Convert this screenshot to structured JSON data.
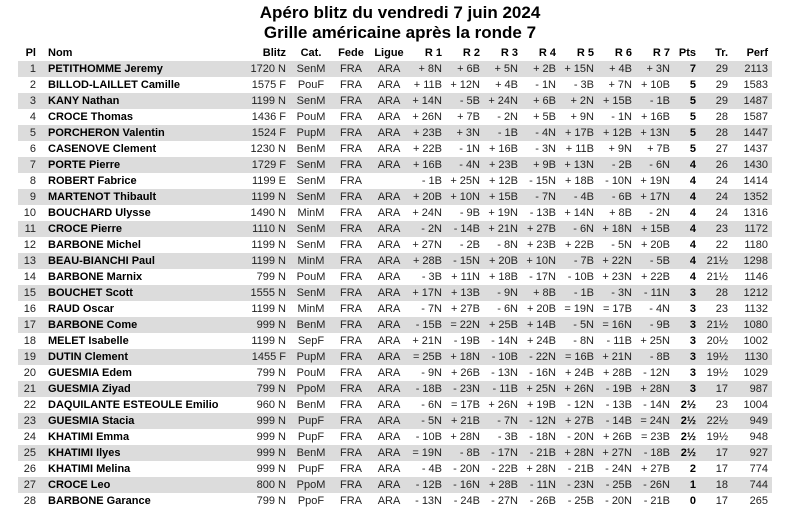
{
  "title": "Apéro blitz du vendredi 7 juin 2024",
  "subtitle": "Grille américaine après la ronde 7",
  "colors": {
    "stripe": "#dcdcdc",
    "text": "#222222",
    "bold_text": "#000000",
    "background": "#ffffff"
  },
  "table": {
    "columns": [
      "Pl",
      "Nom",
      "Blitz",
      "Cat.",
      "Fede",
      "Ligue",
      "R 1",
      "R 2",
      "R 3",
      "R 4",
      "R 5",
      "R 6",
      "R 7",
      "Pts",
      "Tr.",
      "Perf"
    ],
    "rows": [
      [
        "1",
        "PETITHOMME Jeremy",
        "1720 N",
        "SenM",
        "FRA",
        "ARA",
        "+ 8N",
        "+ 6B",
        "+ 5N",
        "+ 2B",
        "+ 15N",
        "+ 4B",
        "+ 3N",
        "7",
        "29",
        "2113"
      ],
      [
        "2",
        "BILLOD-LAILLET Camille",
        "1575 F",
        "PouF",
        "FRA",
        "ARA",
        "+ 11B",
        "+ 12N",
        "+ 4B",
        "- 1N",
        "- 3B",
        "+ 7N",
        "+ 10B",
        "5",
        "29",
        "1583"
      ],
      [
        "3",
        "KANY Nathan",
        "1199 N",
        "SenM",
        "FRA",
        "ARA",
        "+ 14N",
        "- 5B",
        "+ 24N",
        "+ 6B",
        "+ 2N",
        "+ 15B",
        "- 1B",
        "5",
        "29",
        "1487"
      ],
      [
        "4",
        "CROCE Thomas",
        "1436 F",
        "PouM",
        "FRA",
        "ARA",
        "+ 26N",
        "+ 7B",
        "- 2N",
        "+ 5B",
        "+ 9N",
        "- 1N",
        "+ 16B",
        "5",
        "28",
        "1587"
      ],
      [
        "5",
        "PORCHERON Valentin",
        "1524 F",
        "PupM",
        "FRA",
        "ARA",
        "+ 23B",
        "+ 3N",
        "- 1B",
        "- 4N",
        "+ 17B",
        "+ 12B",
        "+ 13N",
        "5",
        "28",
        "1447"
      ],
      [
        "6",
        "CASENOVE Clement",
        "1230 N",
        "BenM",
        "FRA",
        "ARA",
        "+ 22B",
        "- 1N",
        "+ 16B",
        "- 3N",
        "+ 11B",
        "+ 9N",
        "+ 7B",
        "5",
        "27",
        "1437"
      ],
      [
        "7",
        "PORTE Pierre",
        "1729 F",
        "SenM",
        "FRA",
        "ARA",
        "+ 16B",
        "- 4N",
        "+ 23B",
        "+ 9B",
        "+ 13N",
        "- 2B",
        "- 6N",
        "4",
        "26",
        "1430"
      ],
      [
        "8",
        "ROBERT Fabrice",
        "1199 E",
        "SenM",
        "FRA",
        "",
        "- 1B",
        "+ 25N",
        "+ 12B",
        "- 15N",
        "+ 18B",
        "- 10N",
        "+ 19N",
        "4",
        "24",
        "1414"
      ],
      [
        "9",
        "MARTENOT Thibault",
        "1199 N",
        "SenM",
        "FRA",
        "ARA",
        "+ 20B",
        "+ 10N",
        "+ 15B",
        "- 7N",
        "- 4B",
        "- 6B",
        "+ 17N",
        "4",
        "24",
        "1352"
      ],
      [
        "10",
        "BOUCHARD Ulysse",
        "1490 N",
        "MinM",
        "FRA",
        "ARA",
        "+ 24N",
        "- 9B",
        "+ 19N",
        "- 13B",
        "+ 14N",
        "+ 8B",
        "- 2N",
        "4",
        "24",
        "1316"
      ],
      [
        "11",
        "CROCE Pierre",
        "1110 N",
        "SenM",
        "FRA",
        "ARA",
        "- 2N",
        "- 14B",
        "+ 21N",
        "+ 27B",
        "- 6N",
        "+ 18N",
        "+ 15B",
        "4",
        "23",
        "1172"
      ],
      [
        "12",
        "BARBONE Michel",
        "1199 N",
        "SenM",
        "FRA",
        "ARA",
        "+ 27N",
        "- 2B",
        "- 8N",
        "+ 23B",
        "+ 22B",
        "- 5N",
        "+ 20B",
        "4",
        "22",
        "1180"
      ],
      [
        "13",
        "BEAU-BIANCHI Paul",
        "1199 N",
        "MinM",
        "FRA",
        "ARA",
        "+ 28B",
        "- 15N",
        "+ 20B",
        "+ 10N",
        "- 7B",
        "+ 22N",
        "- 5B",
        "4",
        "21½",
        "1298"
      ],
      [
        "14",
        "BARBONE Marnix",
        "799 N",
        "PouM",
        "FRA",
        "ARA",
        "- 3B",
        "+ 11N",
        "+ 18B",
        "- 17N",
        "- 10B",
        "+ 23N",
        "+ 22B",
        "4",
        "21½",
        "1146"
      ],
      [
        "15",
        "BOUCHET Scott",
        "1555 N",
        "SenM",
        "FRA",
        "ARA",
        "+ 17N",
        "+ 13B",
        "- 9N",
        "+ 8B",
        "- 1B",
        "- 3N",
        "- 11N",
        "3",
        "28",
        "1212"
      ],
      [
        "16",
        "RAUD Oscar",
        "1199 N",
        "MinM",
        "FRA",
        "ARA",
        "- 7N",
        "+ 27B",
        "- 6N",
        "+ 20B",
        "= 19N",
        "= 17B",
        "- 4N",
        "3",
        "23",
        "1132"
      ],
      [
        "17",
        "BARBONE Come",
        "999 N",
        "BenM",
        "FRA",
        "ARA",
        "- 15B",
        "= 22N",
        "+ 25B",
        "+ 14B",
        "- 5N",
        "= 16N",
        "- 9B",
        "3",
        "21½",
        "1080"
      ],
      [
        "18",
        "MELET Isabelle",
        "1199 N",
        "SepF",
        "FRA",
        "ARA",
        "+ 21N",
        "- 19B",
        "- 14N",
        "+ 24B",
        "- 8N",
        "- 11B",
        "+ 25N",
        "3",
        "20½",
        "1002"
      ],
      [
        "19",
        "DUTIN Clement",
        "1455 F",
        "PupM",
        "FRA",
        "ARA",
        "= 25B",
        "+ 18N",
        "- 10B",
        "- 22N",
        "= 16B",
        "+ 21N",
        "- 8B",
        "3",
        "19½",
        "1130"
      ],
      [
        "20",
        "GUESMIA Edem",
        "799 N",
        "PouM",
        "FRA",
        "ARA",
        "- 9N",
        "+ 26B",
        "- 13N",
        "- 16N",
        "+ 24B",
        "+ 28B",
        "- 12N",
        "3",
        "19½",
        "1029"
      ],
      [
        "21",
        "GUESMIA Ziyad",
        "799 N",
        "PpoM",
        "FRA",
        "ARA",
        "- 18B",
        "- 23N",
        "- 11B",
        "+ 25N",
        "+ 26N",
        "- 19B",
        "+ 28N",
        "3",
        "17",
        "987"
      ],
      [
        "22",
        "DAQUILANTE ESTEOULE Emilio",
        "960 N",
        "BenM",
        "FRA",
        "ARA",
        "- 6N",
        "= 17B",
        "+ 26N",
        "+ 19B",
        "- 12N",
        "- 13B",
        "- 14N",
        "2½",
        "23",
        "1004"
      ],
      [
        "23",
        "GUESMIA Stacia",
        "999 N",
        "PupF",
        "FRA",
        "ARA",
        "- 5N",
        "+ 21B",
        "- 7N",
        "- 12N",
        "+ 27B",
        "- 14B",
        "= 24N",
        "2½",
        "22½",
        "949"
      ],
      [
        "24",
        "KHATIMI Emma",
        "999 N",
        "PupF",
        "FRA",
        "ARA",
        "- 10B",
        "+ 28N",
        "- 3B",
        "- 18N",
        "- 20N",
        "+ 26B",
        "= 23B",
        "2½",
        "19½",
        "948"
      ],
      [
        "25",
        "KHATIMI Ilyes",
        "999 N",
        "BenM",
        "FRA",
        "ARA",
        "= 19N",
        "- 8B",
        "- 17N",
        "- 21B",
        "+ 28N",
        "+ 27N",
        "- 18B",
        "2½",
        "17",
        "927"
      ],
      [
        "26",
        "KHATIMI Melina",
        "999 N",
        "PupF",
        "FRA",
        "ARA",
        "- 4B",
        "- 20N",
        "- 22B",
        "+ 28N",
        "- 21B",
        "- 24N",
        "+ 27B",
        "2",
        "17",
        "774"
      ],
      [
        "27",
        "CROCE Leo",
        "800 N",
        "PpoM",
        "FRA",
        "ARA",
        "- 12B",
        "- 16N",
        "+ 28B",
        "- 11N",
        "- 23N",
        "- 25B",
        "- 26N",
        "1",
        "18",
        "744"
      ],
      [
        "28",
        "BARBONE Garance",
        "799 N",
        "PpoF",
        "FRA",
        "ARA",
        "- 13N",
        "- 24B",
        "- 27N",
        "- 26B",
        "- 25B",
        "- 20N",
        "- 21B",
        "0",
        "17",
        "265"
      ]
    ]
  }
}
